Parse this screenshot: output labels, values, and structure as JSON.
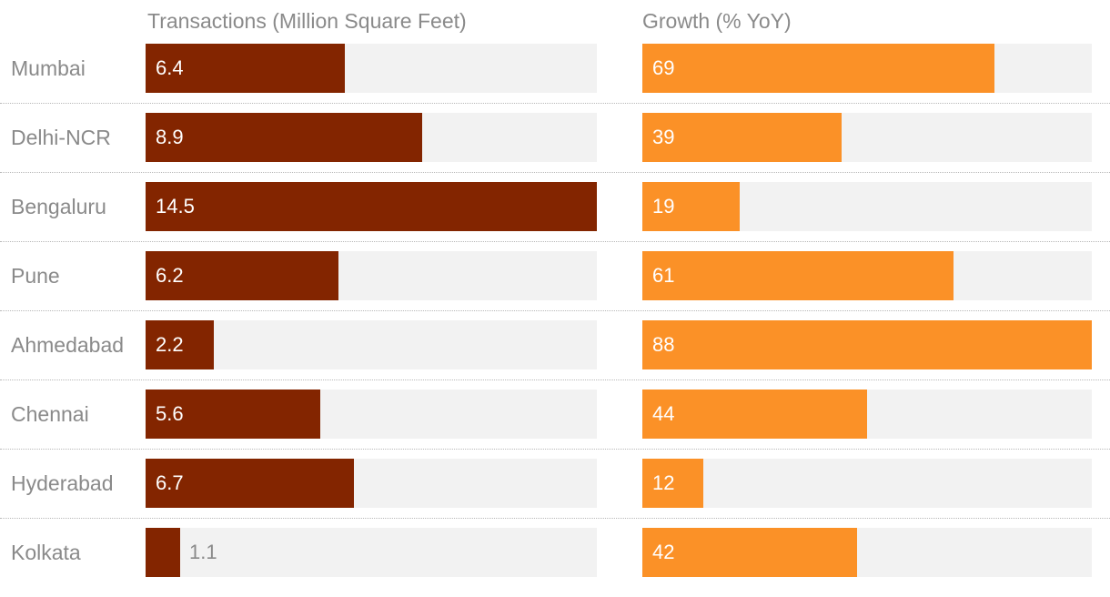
{
  "chart_data": {
    "type": "bar",
    "orientation": "horizontal",
    "categories": [
      "Mumbai",
      "Delhi-NCR",
      "Bengaluru",
      "Pune",
      "Ahmedabad",
      "Chennai",
      "Hyderabad",
      "Kolkata"
    ],
    "series": [
      {
        "name": "Transactions (Million Square Feet)",
        "values": [
          6.4,
          8.9,
          14.5,
          6.2,
          2.2,
          5.6,
          6.7,
          1.1
        ],
        "labels": [
          "6.4",
          "8.9",
          "14.5",
          "6.2",
          "2.2",
          "5.6",
          "6.7",
          "1.1"
        ],
        "max": 14.5,
        "color": "#832500"
      },
      {
        "name": "Growth (% YoY)",
        "values": [
          69,
          39,
          19,
          61,
          88,
          44,
          12,
          42
        ],
        "labels": [
          "69",
          "39",
          "19",
          "61",
          "88",
          "44",
          "12",
          "42"
        ],
        "max": 88,
        "color": "#fb9127"
      }
    ],
    "track_color": "#f2f2f2",
    "label_color": "#8a8a8a"
  }
}
